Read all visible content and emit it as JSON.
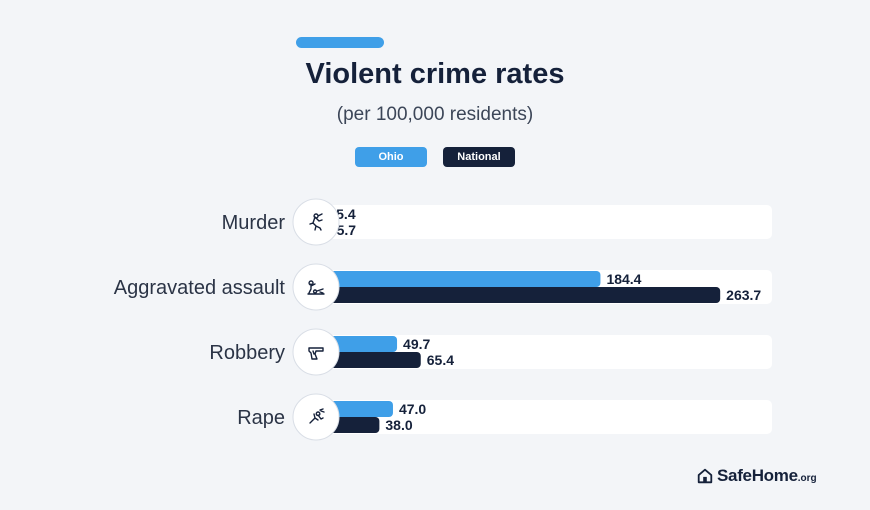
{
  "header": {
    "title": "Violent crime rates",
    "subtitle": "(per 100,000 residents)"
  },
  "legend": {
    "ohio": "Ohio",
    "national": "National"
  },
  "brand": {
    "name": "SafeHome",
    "tld": ".org"
  },
  "colors": {
    "ohio": "#3f9fe8",
    "national": "#15213a",
    "track": "#ffffff",
    "background": "#f3f5f8"
  },
  "chart_data": {
    "type": "bar",
    "orientation": "horizontal",
    "title": "Violent crime rates",
    "subtitle": "(per 100,000 residents)",
    "categories": [
      "Murder",
      "Aggravated assault",
      "Robbery",
      "Rape"
    ],
    "icons": [
      "murder-icon",
      "assault-icon",
      "gun-icon",
      "rape-icon"
    ],
    "series": [
      {
        "name": "Ohio",
        "values": [
          5.4,
          184.4,
          49.7,
          47.0
        ],
        "labels": [
          "5.4",
          "184.4",
          "49.7",
          "47.0"
        ]
      },
      {
        "name": "National",
        "values": [
          5.7,
          263.7,
          65.4,
          38.0
        ],
        "labels": [
          "5.7",
          "263.7",
          "65.4",
          "38.0"
        ]
      }
    ],
    "legend": "top",
    "grid": false
  }
}
